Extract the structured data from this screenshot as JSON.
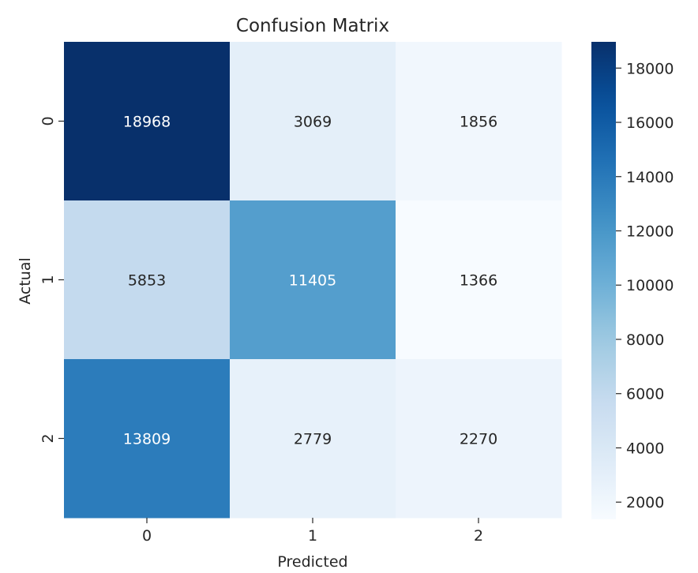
{
  "chart_data": {
    "type": "heatmap",
    "title": "Confusion Matrix",
    "xlabel": "Predicted",
    "ylabel": "Actual",
    "x_categories": [
      "0",
      "1",
      "2"
    ],
    "y_categories": [
      "0",
      "1",
      "2"
    ],
    "values": [
      [
        18968,
        3069,
        1856
      ],
      [
        5853,
        11405,
        1366
      ],
      [
        13809,
        2779,
        2270
      ]
    ],
    "colormap": "Blues",
    "colorbar": {
      "min": 1366,
      "max": 18968,
      "ticks": [
        2000,
        4000,
        6000,
        8000,
        10000,
        12000,
        14000,
        16000,
        18000
      ]
    }
  }
}
